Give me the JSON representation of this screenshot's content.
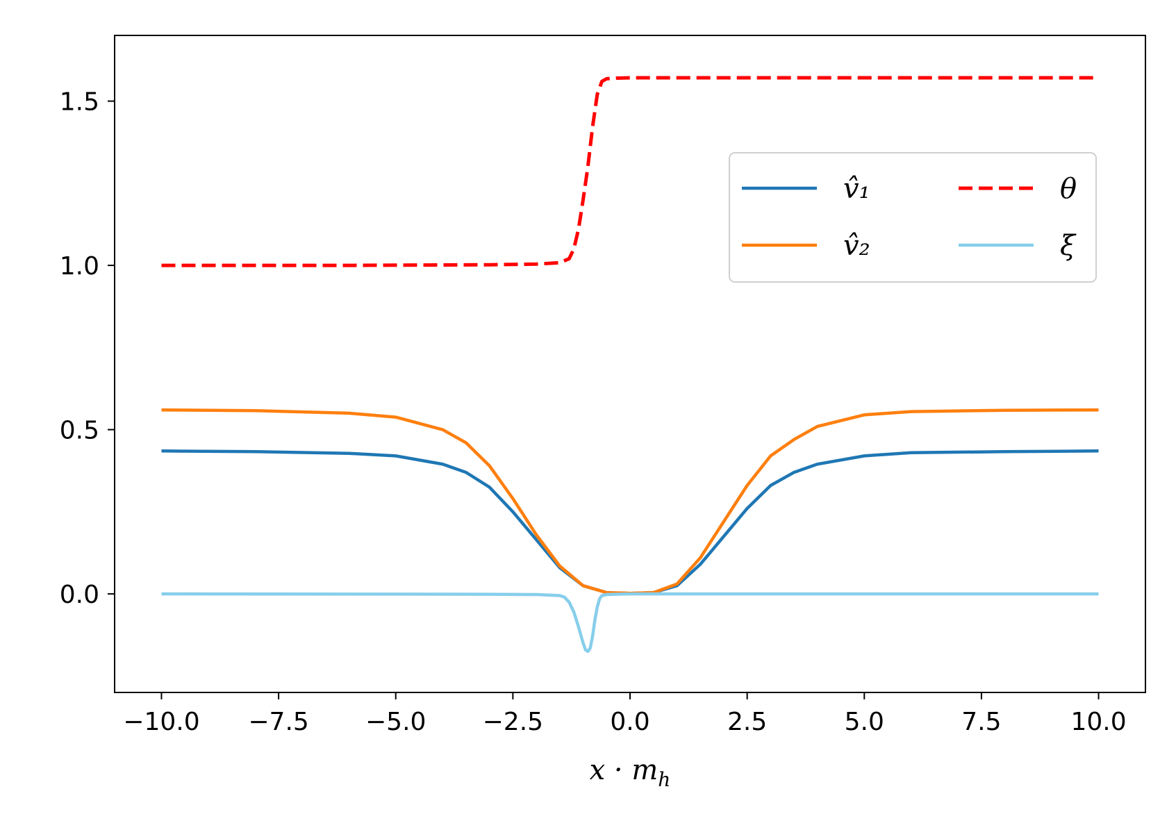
{
  "chart_data": {
    "type": "line",
    "title": "",
    "xlabel": "x · m_h",
    "ylabel": "",
    "xlim": [
      -11,
      11
    ],
    "ylim": [
      -0.3,
      1.7
    ],
    "xticks": [
      -10.0,
      -7.5,
      -5.0,
      -2.5,
      0.0,
      2.5,
      5.0,
      7.5,
      10.0
    ],
    "xtick_labels": [
      "−10.0",
      "−7.5",
      "−5.0",
      "−2.5",
      "0.0",
      "2.5",
      "5.0",
      "7.5",
      "10.0"
    ],
    "yticks": [
      0.0,
      0.5,
      1.0,
      1.5
    ],
    "ytick_labels": [
      "0.0",
      "0.5",
      "1.0",
      "1.5"
    ],
    "grid": false,
    "legend_position": "upper-right",
    "legend": [
      {
        "label": "v̂₁",
        "color": "#1f77b4",
        "style": "solid"
      },
      {
        "label": "v̂₂",
        "color": "#ff7f0e",
        "style": "solid"
      },
      {
        "label": "θ",
        "color": "#ff0000",
        "style": "dashed"
      },
      {
        "label": "ξ",
        "color": "#87ceeb",
        "style": "solid"
      }
    ],
    "series": [
      {
        "name": "v̂₁",
        "color": "#1f77b4",
        "x": [
          -10,
          -8,
          -6,
          -5,
          -4,
          -3.5,
          -3,
          -2.5,
          -2,
          -1.5,
          -1,
          -0.5,
          0,
          0.5,
          1,
          1.5,
          2,
          2.5,
          3,
          3.5,
          4,
          5,
          6,
          8,
          10
        ],
        "y": [
          0.435,
          0.433,
          0.428,
          0.42,
          0.395,
          0.37,
          0.325,
          0.25,
          0.165,
          0.08,
          0.025,
          0.004,
          0.002,
          0.004,
          0.025,
          0.09,
          0.175,
          0.26,
          0.33,
          0.37,
          0.395,
          0.42,
          0.43,
          0.433,
          0.435
        ]
      },
      {
        "name": "v̂₂",
        "color": "#ff7f0e",
        "x": [
          -10,
          -8,
          -6,
          -5,
          -4,
          -3.5,
          -3,
          -2.5,
          -2,
          -1.5,
          -1,
          -0.5,
          0,
          0.5,
          1,
          1.5,
          2,
          2.5,
          3,
          3.5,
          4,
          5,
          6,
          8,
          10
        ],
        "y": [
          0.56,
          0.558,
          0.55,
          0.538,
          0.5,
          0.46,
          0.39,
          0.29,
          0.18,
          0.085,
          0.025,
          0.004,
          0.002,
          0.004,
          0.03,
          0.11,
          0.22,
          0.33,
          0.42,
          0.47,
          0.51,
          0.545,
          0.555,
          0.559,
          0.56
        ]
      },
      {
        "name": "θ",
        "color": "#ff0000",
        "x": [
          -10,
          -6,
          -3,
          -2,
          -1.5,
          -1.3,
          -1.2,
          -1.1,
          -1.0,
          -0.9,
          -0.8,
          -0.7,
          -0.6,
          -0.5,
          -0.3,
          0,
          5,
          10
        ],
        "y": [
          1.0,
          1.0,
          1.002,
          1.004,
          1.008,
          1.02,
          1.05,
          1.11,
          1.2,
          1.3,
          1.42,
          1.52,
          1.56,
          1.568,
          1.57,
          1.571,
          1.571,
          1.571
        ]
      },
      {
        "name": "ξ",
        "color": "#87ceeb",
        "x": [
          -10,
          -3,
          -2,
          -1.5,
          -1.4,
          -1.3,
          -1.2,
          -1.1,
          -1.0,
          -0.95,
          -0.9,
          -0.85,
          -0.8,
          -0.75,
          -0.7,
          -0.65,
          -0.6,
          -0.5,
          -0.3,
          0,
          5,
          10
        ],
        "y": [
          0.0,
          -0.001,
          -0.002,
          -0.005,
          -0.01,
          -0.025,
          -0.055,
          -0.1,
          -0.15,
          -0.17,
          -0.175,
          -0.165,
          -0.13,
          -0.08,
          -0.04,
          -0.015,
          -0.005,
          -0.002,
          -0.001,
          0.0,
          0.0,
          0.0
        ]
      }
    ]
  }
}
